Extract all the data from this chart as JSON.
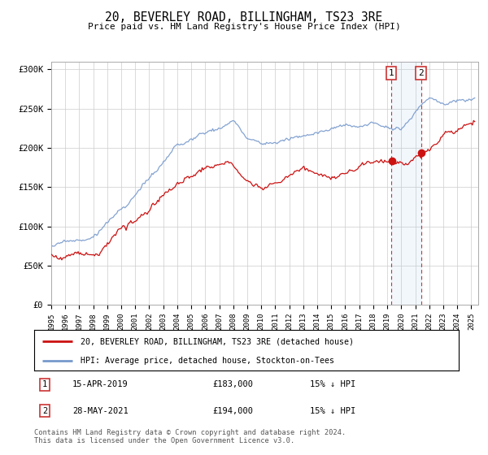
{
  "title": "20, BEVERLEY ROAD, BILLINGHAM, TS23 3RE",
  "subtitle": "Price paid vs. HM Land Registry's House Price Index (HPI)",
  "ylabel_ticks": [
    "£0",
    "£50K",
    "£100K",
    "£150K",
    "£200K",
    "£250K",
    "£300K"
  ],
  "ytick_values": [
    0,
    50000,
    100000,
    150000,
    200000,
    250000,
    300000
  ],
  "ylim": [
    0,
    310000
  ],
  "xlim_start": 1995.0,
  "xlim_end": 2025.5,
  "hpi_color": "#7799cc",
  "price_color": "#cc1111",
  "marker_dashed_color": "#cc3333",
  "shade_color": "#ddeeff",
  "marker1_year": 2019.29,
  "marker2_year": 2021.41,
  "marker1_price": 183000,
  "marker2_price": 194000,
  "legend_label1": "20, BEVERLEY ROAD, BILLINGHAM, TS23 3RE (detached house)",
  "legend_label2": "HPI: Average price, detached house, Stockton-on-Tees",
  "footer": "Contains HM Land Registry data © Crown copyright and database right 2024.\nThis data is licensed under the Open Government Licence v3.0.",
  "background_color": "#ffffff",
  "grid_color": "#cccccc"
}
